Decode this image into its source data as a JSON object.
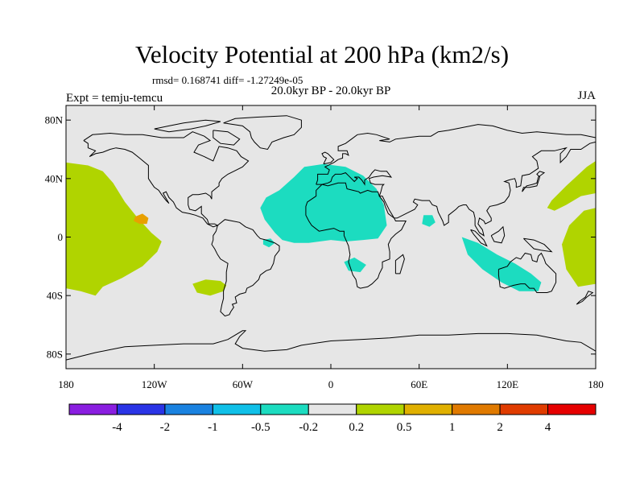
{
  "title": "Velocity Potential at 200 hPa (km2/s)",
  "stats": "rmsd= 0.168741 diff= -1.27249e-05",
  "subtitle": "20.0kyr BP - 20.0kyr BP",
  "experiment": "Expt = temju-temcu",
  "season": "JJA",
  "map": {
    "projection": "cylindrical equidistant",
    "lon_range": [
      -180,
      180
    ],
    "lat_range": [
      -90,
      90
    ],
    "background_color": "#e6e6e6",
    "lat_ticks": [
      {
        "lat": 80,
        "label": "80N"
      },
      {
        "lat": 40,
        "label": "40N"
      },
      {
        "lat": 0,
        "label": "0"
      },
      {
        "lat": -40,
        "label": "40S"
      },
      {
        "lat": -80,
        "label": "80S"
      }
    ],
    "lon_ticks": [
      {
        "lon": -180,
        "label": "180"
      },
      {
        "lon": -120,
        "label": "120W"
      },
      {
        "lon": -60,
        "label": "60W"
      },
      {
        "lon": 0,
        "label": "0"
      },
      {
        "lon": 60,
        "label": "60E"
      },
      {
        "lon": 120,
        "label": "120E"
      },
      {
        "lon": 180,
        "label": "180"
      }
    ],
    "field_regions": [
      {
        "name": "pacific-positive",
        "color": "#b0d400",
        "points": [
          [
            -180,
            51
          ],
          [
            -165,
            49
          ],
          [
            -155,
            45
          ],
          [
            -148,
            37
          ],
          [
            -140,
            24
          ],
          [
            -132,
            14
          ],
          [
            -122,
            3
          ],
          [
            -115,
            -3
          ],
          [
            -118,
            -10
          ],
          [
            -128,
            -20
          ],
          [
            -142,
            -28
          ],
          [
            -155,
            -34
          ],
          [
            -160,
            -40
          ],
          [
            -170,
            -37
          ],
          [
            -180,
            -35
          ]
        ]
      },
      {
        "name": "pacific-positive-east",
        "color": "#b0d400",
        "points": [
          [
            180,
            52
          ],
          [
            174,
            48
          ],
          [
            160,
            35
          ],
          [
            150,
            25
          ],
          [
            147,
            20
          ],
          [
            152,
            18
          ],
          [
            160,
            22
          ],
          [
            170,
            28
          ],
          [
            180,
            30
          ]
        ]
      },
      {
        "name": "pacific-positive-southwest",
        "color": "#b0d400",
        "points": [
          [
            180,
            20
          ],
          [
            172,
            18
          ],
          [
            162,
            8
          ],
          [
            157,
            -5
          ],
          [
            160,
            -22
          ],
          [
            168,
            -34
          ],
          [
            180,
            -32
          ]
        ]
      },
      {
        "name": "south-america-positive",
        "color": "#b0d400",
        "points": [
          [
            -94,
            -32
          ],
          [
            -85,
            -29
          ],
          [
            -75,
            -30
          ],
          [
            -71,
            -33
          ],
          [
            -73,
            -37
          ],
          [
            -82,
            -40
          ],
          [
            -91,
            -38
          ]
        ]
      },
      {
        "name": "pacific-local-max",
        "color": "#e8a000",
        "points": [
          [
            -133,
            14
          ],
          [
            -128,
            16
          ],
          [
            -124,
            13
          ],
          [
            -125,
            9
          ],
          [
            -130,
            9
          ],
          [
            -134,
            11
          ]
        ]
      },
      {
        "name": "africa-negative",
        "color": "#1cdcc0",
        "points": [
          [
            -44,
            27
          ],
          [
            -35,
            32
          ],
          [
            -25,
            41
          ],
          [
            -18,
            48
          ],
          [
            -5,
            50
          ],
          [
            10,
            48
          ],
          [
            22,
            42
          ],
          [
            31,
            33
          ],
          [
            36,
            22
          ],
          [
            38,
            8
          ],
          [
            32,
            -1
          ],
          [
            22,
            -2
          ],
          [
            10,
            -3
          ],
          [
            0,
            -2
          ],
          [
            -15,
            -4
          ],
          [
            -25,
            -4
          ],
          [
            -33,
            -2
          ],
          [
            -38,
            3
          ],
          [
            -45,
            12
          ],
          [
            -48,
            20
          ]
        ]
      },
      {
        "name": "brazil-negative",
        "color": "#1cdcc0",
        "points": [
          [
            -46,
            -2
          ],
          [
            -41,
            -1
          ],
          [
            -38,
            -4
          ],
          [
            -42,
            -7
          ],
          [
            -46,
            -5
          ]
        ]
      },
      {
        "name": "southern-africa-negative",
        "color": "#1cdcc0",
        "points": [
          [
            9,
            -17
          ],
          [
            16,
            -14
          ],
          [
            24,
            -19
          ],
          [
            20,
            -24
          ],
          [
            12,
            -23
          ]
        ]
      },
      {
        "name": "arabian-sea-negative",
        "color": "#1cdcc0",
        "points": [
          [
            63,
            15
          ],
          [
            69,
            15
          ],
          [
            71,
            10
          ],
          [
            67,
            7
          ],
          [
            62,
            9
          ]
        ]
      },
      {
        "name": "australia-negative",
        "color": "#1cdcc0",
        "points": [
          [
            89,
            0
          ],
          [
            100,
            -4
          ],
          [
            113,
            -12
          ],
          [
            125,
            -18
          ],
          [
            136,
            -25
          ],
          [
            143,
            -31
          ],
          [
            141,
            -37
          ],
          [
            128,
            -37
          ],
          [
            116,
            -31
          ],
          [
            103,
            -22
          ],
          [
            93,
            -12
          ]
        ]
      }
    ]
  },
  "colorbar": {
    "colors": [
      "#8a1ee0",
      "#2a34e6",
      "#1a82e0",
      "#10c0e8",
      "#1cdcc0",
      "#e6e6e6",
      "#b0d400",
      "#e0b000",
      "#e07a00",
      "#e03c00",
      "#e60000"
    ],
    "labels": [
      "-4",
      "-2",
      "-1",
      "-0.5",
      "-0.2",
      "0.2",
      "0.5",
      "1",
      "2",
      "4"
    ]
  }
}
